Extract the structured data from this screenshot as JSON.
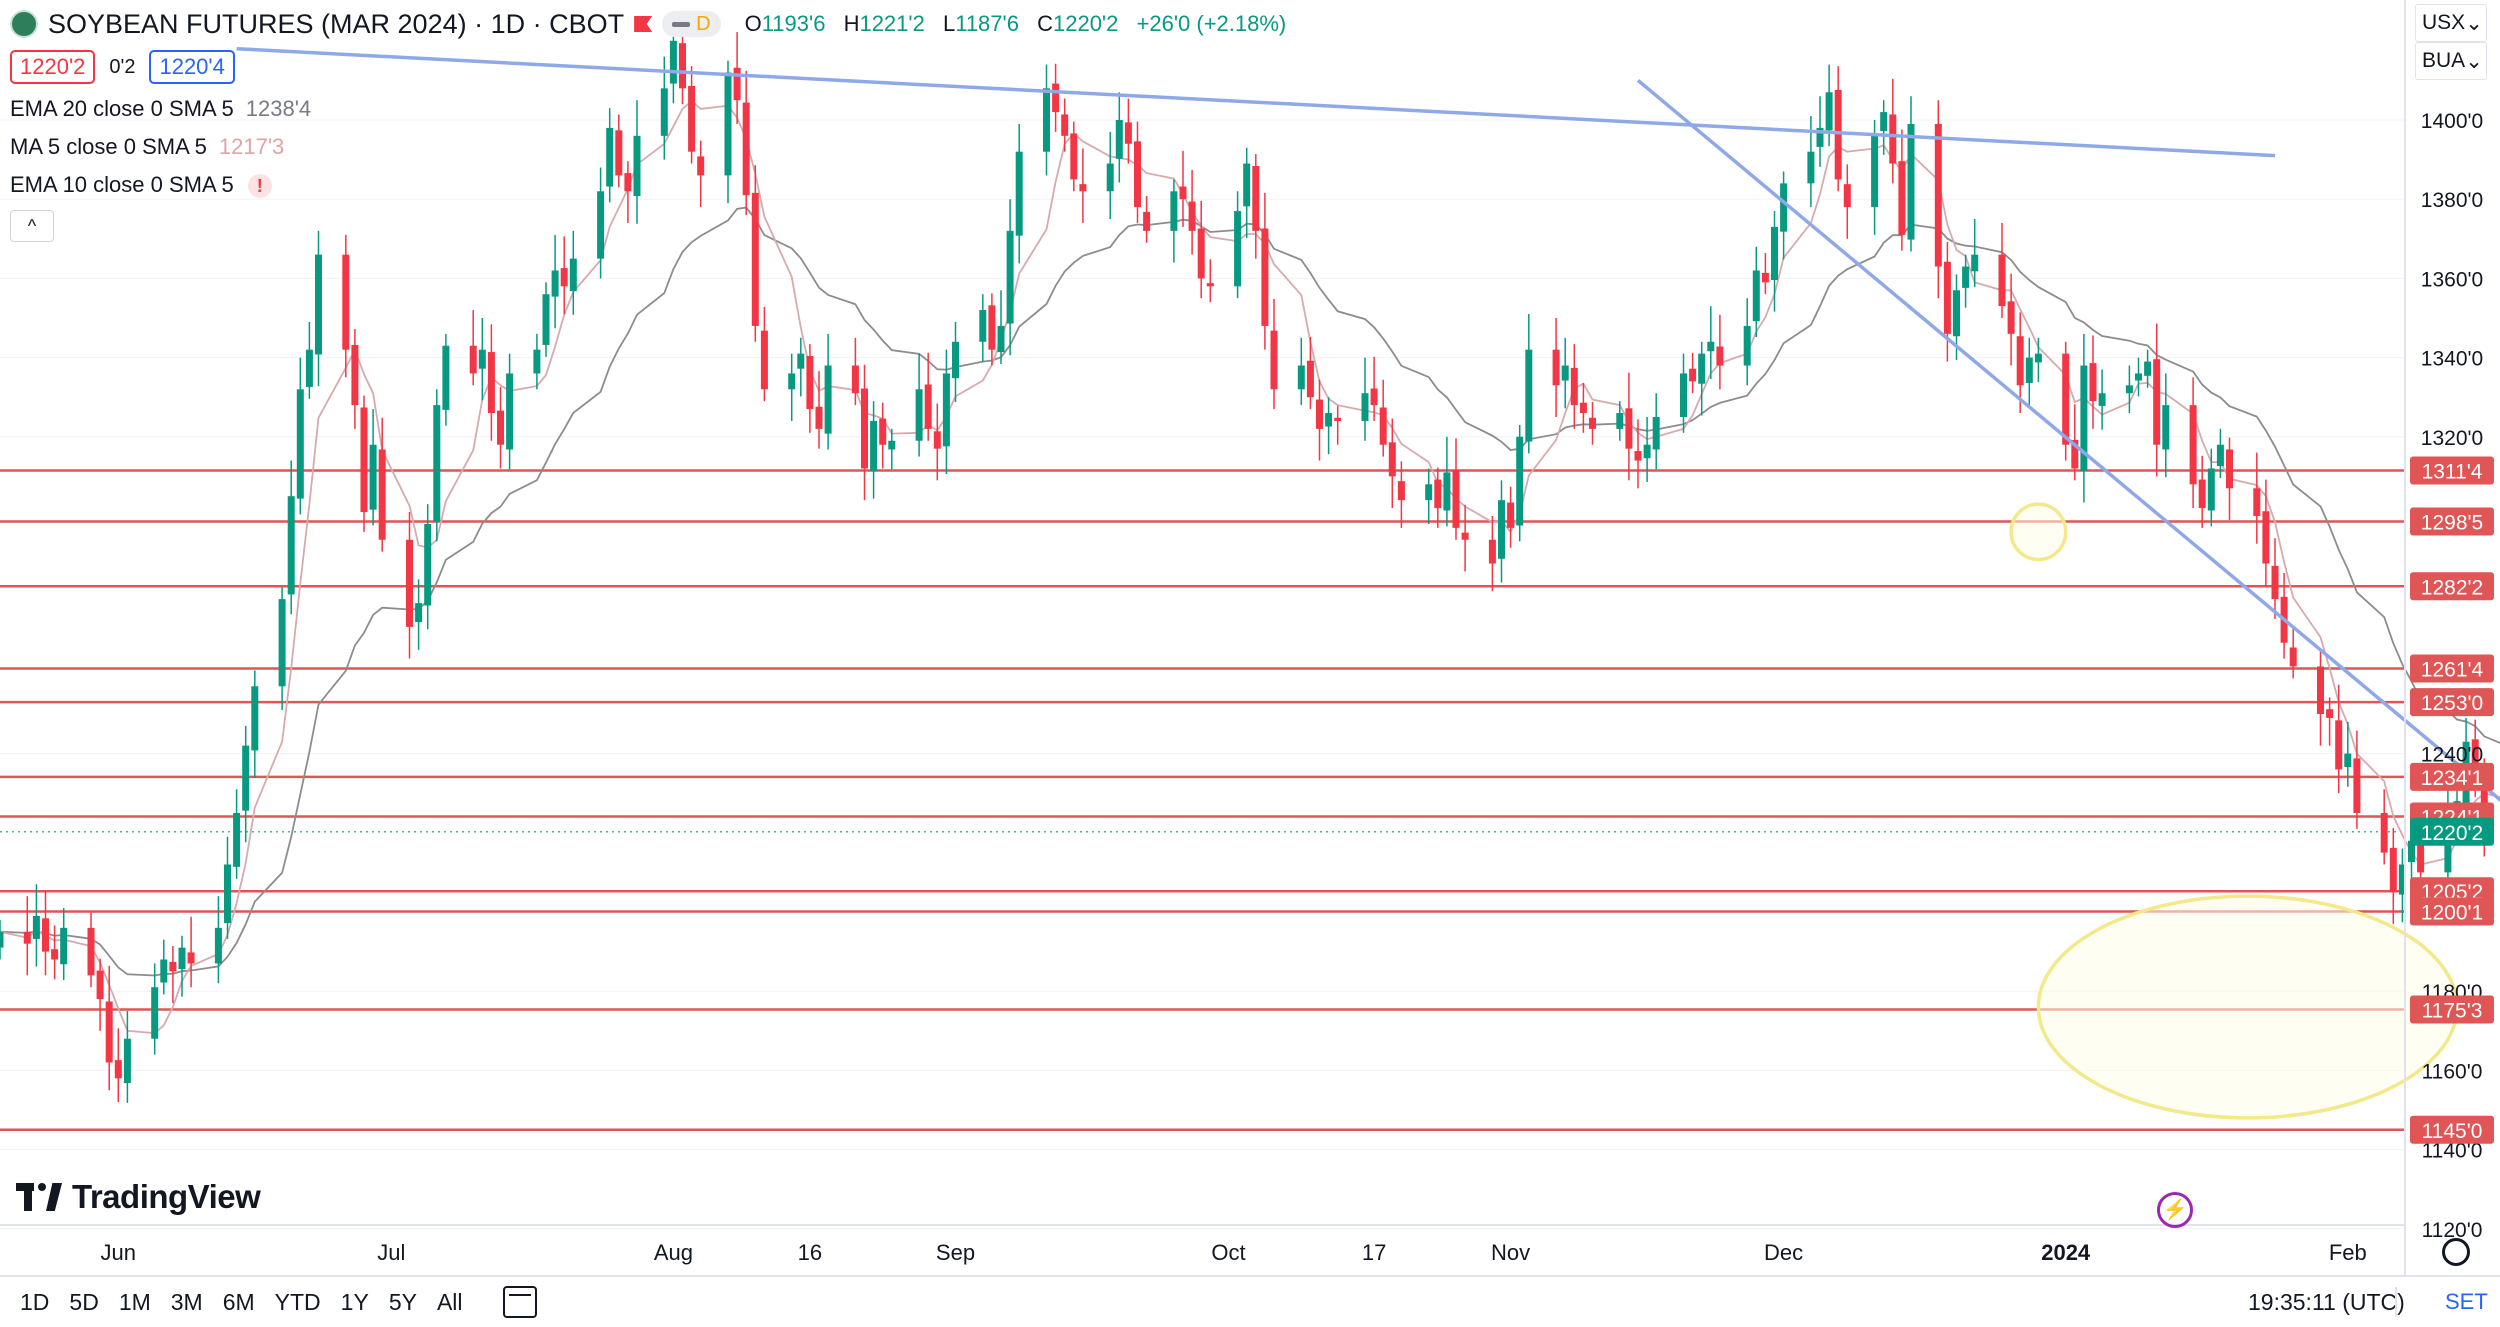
{
  "header": {
    "symbol_title": "SOYBEAN FUTURES (MAR 2024) · 1D · CBOT",
    "delay_badge": "D",
    "ohlc": {
      "o_label": "O",
      "o_value": "1193'6",
      "h_label": "H",
      "h_value": "1221'2",
      "l_label": "L",
      "l_value": "1187'6",
      "c_label": "C",
      "c_value": "1220'2",
      "change": "+26'0 (+2.18%)"
    },
    "bid": "1220'2",
    "spread": "0'2",
    "ask": "1220'4"
  },
  "indicators": [
    {
      "label": "EMA 20 close 0 SMA 5",
      "value": "1238'4"
    },
    {
      "label": "MA 5 close 0 SMA 5",
      "value": "1217'3"
    },
    {
      "label": "EMA 10 close 0 SMA 5",
      "value": "!"
    }
  ],
  "collapse_glyph": "^",
  "top_right": {
    "currency": "USX",
    "unit": "BUA",
    "chevron": "⌄"
  },
  "bottom_bar": {
    "ranges": [
      "1D",
      "5D",
      "1M",
      "3M",
      "6M",
      "YTD",
      "1Y",
      "5Y",
      "All"
    ],
    "clock": "19:35:11 (UTC)",
    "set_label": "SET"
  },
  "logo_text": "TradingView",
  "colors": {
    "up": "#089981",
    "down": "#f23645",
    "level": "#e05555",
    "trend": "#8fa9e8",
    "ema20": "#8e8b8f",
    "ma5": "#d8a9ad",
    "highlight": "#f3e88a",
    "highlight_fill": "#fffde8"
  },
  "chart_data": {
    "type": "candlestick",
    "y_axis_ticks": [
      "1400'0",
      "1380'0",
      "1360'0",
      "1340'0",
      "1320'0",
      "1240'0",
      "1180'0",
      "1160'0",
      "1140'0",
      "1120'0"
    ],
    "x_axis_labels": [
      "Jun",
      "Jul",
      "Aug",
      "16",
      "Sep",
      "Oct",
      "17",
      "Nov",
      "Dec",
      "2024",
      "Feb"
    ],
    "ylim": [
      1120,
      1430
    ],
    "level_lines": [
      {
        "label": "1311'4",
        "value": 1311.5
      },
      {
        "label": "1298'5",
        "value": 1298.625
      },
      {
        "label": "1282'2",
        "value": 1282.25
      },
      {
        "label": "1261'4",
        "value": 1261.5
      },
      {
        "label": "1253'0",
        "value": 1253
      },
      {
        "label": "1234'1",
        "value": 1234.125
      },
      {
        "label": "1224'1",
        "value": 1224.125
      },
      {
        "label": "1205'2",
        "value": 1205.25
      },
      {
        "label": "1200'1",
        "value": 1200.125
      },
      {
        "label": "1175'3",
        "value": 1175.375
      },
      {
        "label": "1145'0",
        "value": 1145
      }
    ],
    "last_price": {
      "label": "1220'2",
      "value": 1220.25
    },
    "trend_lines": [
      {
        "from": [
          "2023-06-14",
          1418
        ],
        "to": [
          "2024-01-24",
          1391
        ]
      },
      {
        "from": [
          "2023-11-15",
          1410
        ],
        "to": [
          "2024-02-20",
          1224
        ]
      }
    ],
    "highlight_ellipses": [
      {
        "center": [
          "2023-12-29",
          1296
        ],
        "rx_days": 3,
        "ry": 7
      },
      {
        "center": [
          "2024-01-21",
          1176
        ],
        "rx_days": 23,
        "ry": 28
      }
    ],
    "closes": [
      1195,
      1192,
      1199,
      1190,
      1188,
      1196,
      1184,
      1178,
      1162,
      1158,
      1168,
      1181,
      1188,
      1185,
      1191,
      1187,
      1196,
      1212,
      1225,
      1242,
      1257,
      1279,
      1305,
      1332,
      1342,
      1366,
      1342,
      1328,
      1301,
      1318,
      1294,
      1272,
      1278,
      1298,
      1328,
      1343,
      1336,
      1342,
      1326,
      1318,
      1336,
      1342,
      1356,
      1362,
      1358,
      1365,
      1382,
      1398,
      1386,
      1382,
      1396,
      1408,
      1420,
      1408,
      1392,
      1386,
      1412,
      1405,
      1381,
      1348,
      1332,
      1336,
      1341,
      1327,
      1322,
      1338,
      1331,
      1312,
      1324,
      1318,
      1319,
      1332,
      1322,
      1317,
      1336,
      1344,
      1352,
      1342,
      1348,
      1372,
      1392,
      1408,
      1402,
      1396,
      1385,
      1382,
      1389,
      1400,
      1394,
      1378,
      1372,
      1382,
      1380,
      1372,
      1360,
      1358,
      1377,
      1389,
      1372,
      1348,
      1332,
      1338,
      1330,
      1322,
      1326,
      1324,
      1331,
      1328,
      1318,
      1310,
      1304,
      1308,
      1302,
      1311,
      1297,
      1294,
      1288,
      1304,
      1297,
      1320,
      1342,
      1333,
      1338,
      1328,
      1326,
      1322,
      1326,
      1317,
      1314,
      1318,
      1325,
      1336,
      1334,
      1341,
      1344,
      1338,
      1348,
      1362,
      1359,
      1373,
      1384,
      1392,
      1398,
      1407,
      1385,
      1378,
      1396,
      1402,
      1389,
      1371,
      1399,
      1363,
      1346,
      1357,
      1363,
      1366,
      1353,
      1346,
      1333,
      1340,
      1341,
      1318,
      1312,
      1338,
      1329,
      1331,
      1333,
      1336,
      1339,
      1318,
      1328,
      1308,
      1302,
      1312,
      1318,
      1307,
      1300,
      1288,
      1279,
      1268,
      1262,
      1250,
      1249,
      1236,
      1240,
      1225,
      1215,
      1205,
      1212,
      1218,
      1210,
      1223,
      1228,
      1243,
      1236,
      1220,
      1214,
      1194,
      1220
    ]
  }
}
